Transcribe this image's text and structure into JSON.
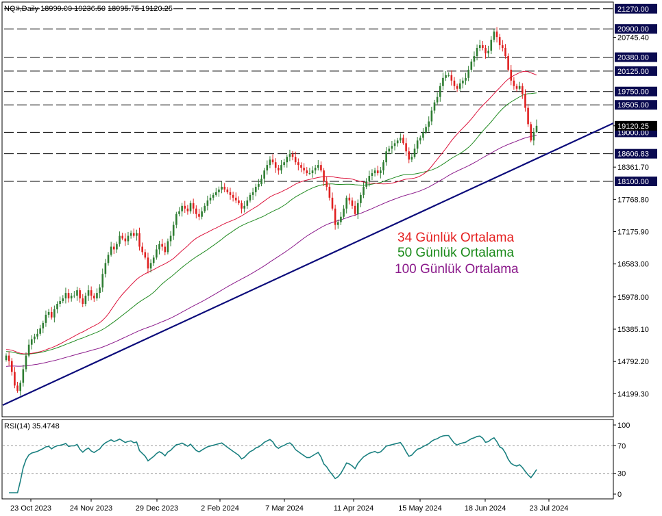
{
  "header": {
    "symbol_line": "NQ#,Daily  18999.00 19236.50 18995.75 19120.25"
  },
  "rsi_header": "RSI(14) 35.4748",
  "colors": {
    "bull": "#2e7d32",
    "bear": "#e02020",
    "ma34": "#dc143c",
    "ma50": "#228b22",
    "ma100": "#8b1a8b",
    "trend": "#0a0a7a",
    "level_box": "#0a0a50",
    "rsi": "#1a8080"
  },
  "annotations": [
    {
      "text": "34 Günlük Ortalama",
      "color": "#e52020"
    },
    {
      "text": "50 Günlük Ortalama",
      "color": "#1a8a1a"
    },
    {
      "text": "100 Günlük Ortalama",
      "color": "#8b1a8b"
    }
  ],
  "chart_data": [
    {
      "type": "candlestick",
      "title": "NQ#,Daily",
      "x_ticks": [
        "23 Oct 2023",
        "24 Nov 2023",
        "29 Dec 2023",
        "2 Feb 2024",
        "7 Mar 2024",
        "11 Apr 2024",
        "15 May 2024",
        "18 Jun 2024",
        "23 Jul 2024"
      ],
      "y_ticks": [
        20745.4,
        19120.25,
        18361.7,
        17768.8,
        17175.9,
        16583.0,
        15978.0,
        15385.1,
        14792.2,
        14199.3
      ],
      "ylim": [
        13990,
        21330
      ],
      "levels": [
        21270.0,
        20900.0,
        20380.0,
        20125.0,
        19750.0,
        19505.0,
        19000.0,
        18606.83,
        18100.0
      ],
      "last_price": 19120.25,
      "last_ohlc": {
        "open": 18999.0,
        "high": 19236.5,
        "low": 18995.75,
        "close": 19120.25
      },
      "closes": [
        14900,
        14800,
        14600,
        14350,
        14250,
        14400,
        14650,
        14900,
        15100,
        15200,
        15250,
        15300,
        15400,
        15500,
        15650,
        15700,
        15600,
        15750,
        15850,
        15900,
        15950,
        16050,
        15950,
        16000,
        16000,
        16100,
        15950,
        15850,
        16000,
        16100,
        16000,
        15950,
        16050,
        16150,
        16400,
        16600,
        16750,
        16900,
        16850,
        16950,
        17100,
        17050,
        17000,
        17100,
        17150,
        17100,
        17150,
        16900,
        16800,
        16700,
        16500,
        16600,
        16700,
        16850,
        16950,
        16900,
        16800,
        17000,
        17100,
        17300,
        17500,
        17550,
        17650,
        17600,
        17550,
        17700,
        17600,
        17500,
        17450,
        17550,
        17650,
        17750,
        17800,
        17850,
        17900,
        17950,
        18000,
        17950,
        17900,
        17850,
        17800,
        17750,
        17700,
        17600,
        17650,
        17750,
        17850,
        17900,
        18000,
        18050,
        18150,
        18300,
        18400,
        18500,
        18450,
        18350,
        18300,
        18400,
        18450,
        18550,
        18600,
        18550,
        18450,
        18400,
        18350,
        18300,
        18250,
        18250,
        18300,
        18350,
        18400,
        18300,
        18100,
        18000,
        17800,
        17600,
        17300,
        17350,
        17450,
        17600,
        17800,
        17750,
        17650,
        17500,
        17700,
        17850,
        18000,
        18100,
        18200,
        18250,
        18300,
        18250,
        18300,
        18450,
        18650,
        18700,
        18750,
        18800,
        18850,
        18900,
        18800,
        18650,
        18500,
        18550,
        18700,
        18850,
        18900,
        19000,
        19100,
        19200,
        19400,
        19550,
        19650,
        19850,
        20000,
        20050,
        20050,
        19950,
        19850,
        19800,
        19900,
        19950,
        20000,
        20150,
        20300,
        20400,
        20550,
        20600,
        20550,
        20450,
        20500,
        20700,
        20850,
        20750,
        20600,
        20550,
        20400,
        20150,
        19950,
        19850,
        19800,
        19850,
        19700,
        19450,
        19150,
        18850,
        19000,
        19120.25
      ],
      "ma34_last": 19700,
      "ma50_last": 19380,
      "ma100_last": 18840
    },
    {
      "type": "line",
      "title": "RSI(14) 35.4748",
      "y_ticks": [
        100,
        70,
        30,
        0
      ],
      "ylim": [
        0,
        100
      ],
      "levels": [
        70,
        30
      ],
      "last_value": 35.4748
    }
  ]
}
